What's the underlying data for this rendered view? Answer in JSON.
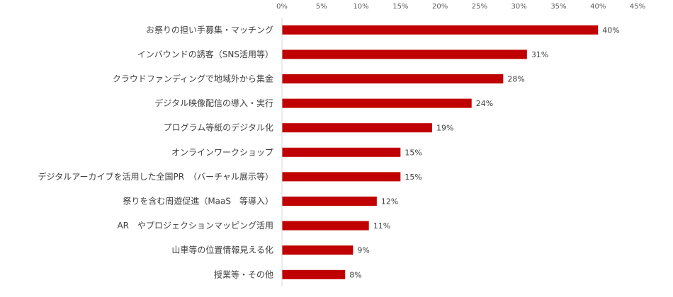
{
  "chart_data": {
    "type": "bar",
    "orientation": "horizontal",
    "categories": [
      "お祭りの担い手募集・マッチング",
      "インバウンドの誘客（SNS活用等）",
      "クラウドファンディングで地域外から集金",
      "デジタル映像配信の導入・実行",
      "プログラム等紙のデジタル化",
      "オンラインワークショップ",
      "デジタルアーカイブを活用した全国PR　（バーチャル展示等）",
      "祭りを含む周遊促進（MaaS　等導入）",
      "AR　やプロジェクションマッピング活用",
      "山車等の位置情報見える化",
      "授業等・その他"
    ],
    "values": [
      40,
      31,
      28,
      24,
      19,
      15,
      15,
      12,
      11,
      9,
      8
    ],
    "value_labels": [
      "40%",
      "31%",
      "28%",
      "24%",
      "19%",
      "15%",
      "15%",
      "12%",
      "11%",
      "9%",
      "8%"
    ],
    "xlim": [
      0,
      45
    ],
    "x_ticks": [
      0,
      5,
      10,
      15,
      20,
      25,
      30,
      35,
      40,
      45
    ],
    "x_tick_labels": [
      "0%",
      "5%",
      "10%",
      "15%",
      "20%",
      "25%",
      "30%",
      "35%",
      "40%",
      "45%"
    ],
    "x_axis_position": "top",
    "grid": false,
    "bar_color": "#C00000",
    "axis_color": "#D9D9D9"
  }
}
